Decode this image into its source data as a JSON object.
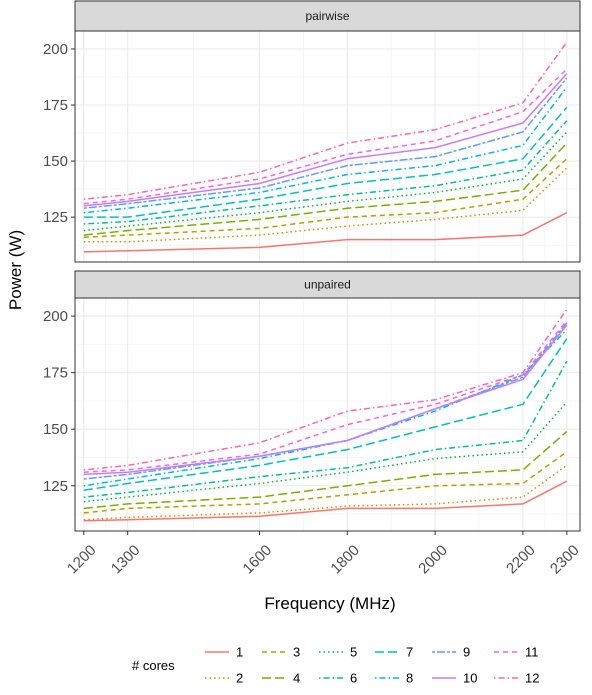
{
  "chart_data": {
    "type": "line",
    "xlabel": "Frequency (MHz)",
    "ylabel": "Power (W)",
    "x": [
      1200,
      1300,
      1600,
      1800,
      2000,
      2200,
      2300
    ],
    "x_tick_labels": [
      "1200",
      "1300",
      "1600",
      "1800",
      "2000",
      "2200",
      "2300"
    ],
    "xlim": [
      1180,
      2330
    ],
    "ylim": [
      105,
      208
    ],
    "y_ticks": [
      125,
      150,
      175,
      200
    ],
    "y_tick_labels": [
      "125",
      "150",
      "175",
      "200"
    ],
    "grid": true,
    "legend": {
      "title": "# cores",
      "position": "bottom",
      "labels": [
        "1",
        "2",
        "3",
        "4",
        "5",
        "6",
        "7",
        "8",
        "9",
        "10",
        "11",
        "12"
      ],
      "colors": [
        "#F8766D",
        "#DE8C00",
        "#B79F00",
        "#7CAE00",
        "#00BA38",
        "#00C08B",
        "#00BFC4",
        "#00B4F0",
        "#619CFF",
        "#C77CFF",
        "#F564E3",
        "#FF64B0"
      ],
      "dashes": [
        "solid",
        "dotted",
        "dashed",
        "longdash",
        "dotted",
        "dotdash",
        "longdash",
        "dotdash",
        "twodash",
        "solid",
        "dashed",
        "dotdash"
      ]
    },
    "panels": [
      {
        "strip": "pairwise",
        "series": [
          {
            "name": "1",
            "values": [
              109.5,
              110,
              111.5,
              115,
              115,
              117,
              127
            ]
          },
          {
            "name": "2",
            "values": [
              114,
              114,
              117,
              121,
              124,
              128,
              147
            ]
          },
          {
            "name": "3",
            "values": [
              116,
              117,
              120,
              125,
              127,
              133,
              151
            ]
          },
          {
            "name": "4",
            "values": [
              117,
              119,
              124,
              129,
              132,
              137,
              158
            ]
          },
          {
            "name": "5",
            "values": [
              119,
              121,
              127,
              132,
              136,
              142,
              163
            ]
          },
          {
            "name": "6",
            "values": [
              122,
              123,
              130,
              135,
              139,
              146,
              168
            ]
          },
          {
            "name": "7",
            "values": [
              125,
              125,
              133,
              140,
              144,
              151,
              174
            ]
          },
          {
            "name": "8",
            "values": [
              127,
              129,
              136,
              144,
              148,
              157,
              183
            ]
          },
          {
            "name": "9",
            "values": [
              129,
              131,
              138,
              148,
              152,
              163,
              187
            ]
          },
          {
            "name": "10",
            "values": [
              130,
              132,
              140,
              151,
              156,
              167,
              189
            ]
          },
          {
            "name": "11",
            "values": [
              131,
              133,
              142,
              153,
              159,
              172,
              191
            ]
          },
          {
            "name": "12",
            "values": [
              133,
              135,
              145,
              158,
              164,
              176,
              203
            ]
          }
        ]
      },
      {
        "strip": "unpaired",
        "series": [
          {
            "name": "1",
            "values": [
              109.5,
              110,
              111.5,
              115,
              115,
              117,
              127
            ]
          },
          {
            "name": "2",
            "values": [
              110,
              111,
              113,
              116,
              117,
              120,
              134
            ]
          },
          {
            "name": "3",
            "values": [
              113,
              115,
              117,
              121,
              125,
              126,
              140
            ]
          },
          {
            "name": "4",
            "values": [
              115,
              117,
              120,
              125,
              130,
              132,
              149
            ]
          },
          {
            "name": "5",
            "values": [
              118,
              120,
              126,
              131,
              137,
              140,
              162
            ]
          },
          {
            "name": "6",
            "values": [
              120,
              122,
              129,
              133,
              141,
              145,
              180
            ]
          },
          {
            "name": "7",
            "values": [
              123,
              126,
              134,
              141,
              151,
              161,
              190
            ]
          },
          {
            "name": "8",
            "values": [
              125,
              128,
              137,
              145,
              158,
              174,
              194
            ]
          },
          {
            "name": "9",
            "values": [
              128,
              130,
              138,
              145,
              159,
              173,
              197
            ]
          },
          {
            "name": "10",
            "values": [
              130,
              131,
              138,
              145,
              159,
              172,
              196
            ]
          },
          {
            "name": "11",
            "values": [
              131,
              132,
              139,
              152,
              161,
              174,
              198
            ]
          },
          {
            "name": "12",
            "values": [
              132,
              134,
              144,
              158,
              163,
              175,
              203
            ]
          }
        ]
      }
    ]
  }
}
